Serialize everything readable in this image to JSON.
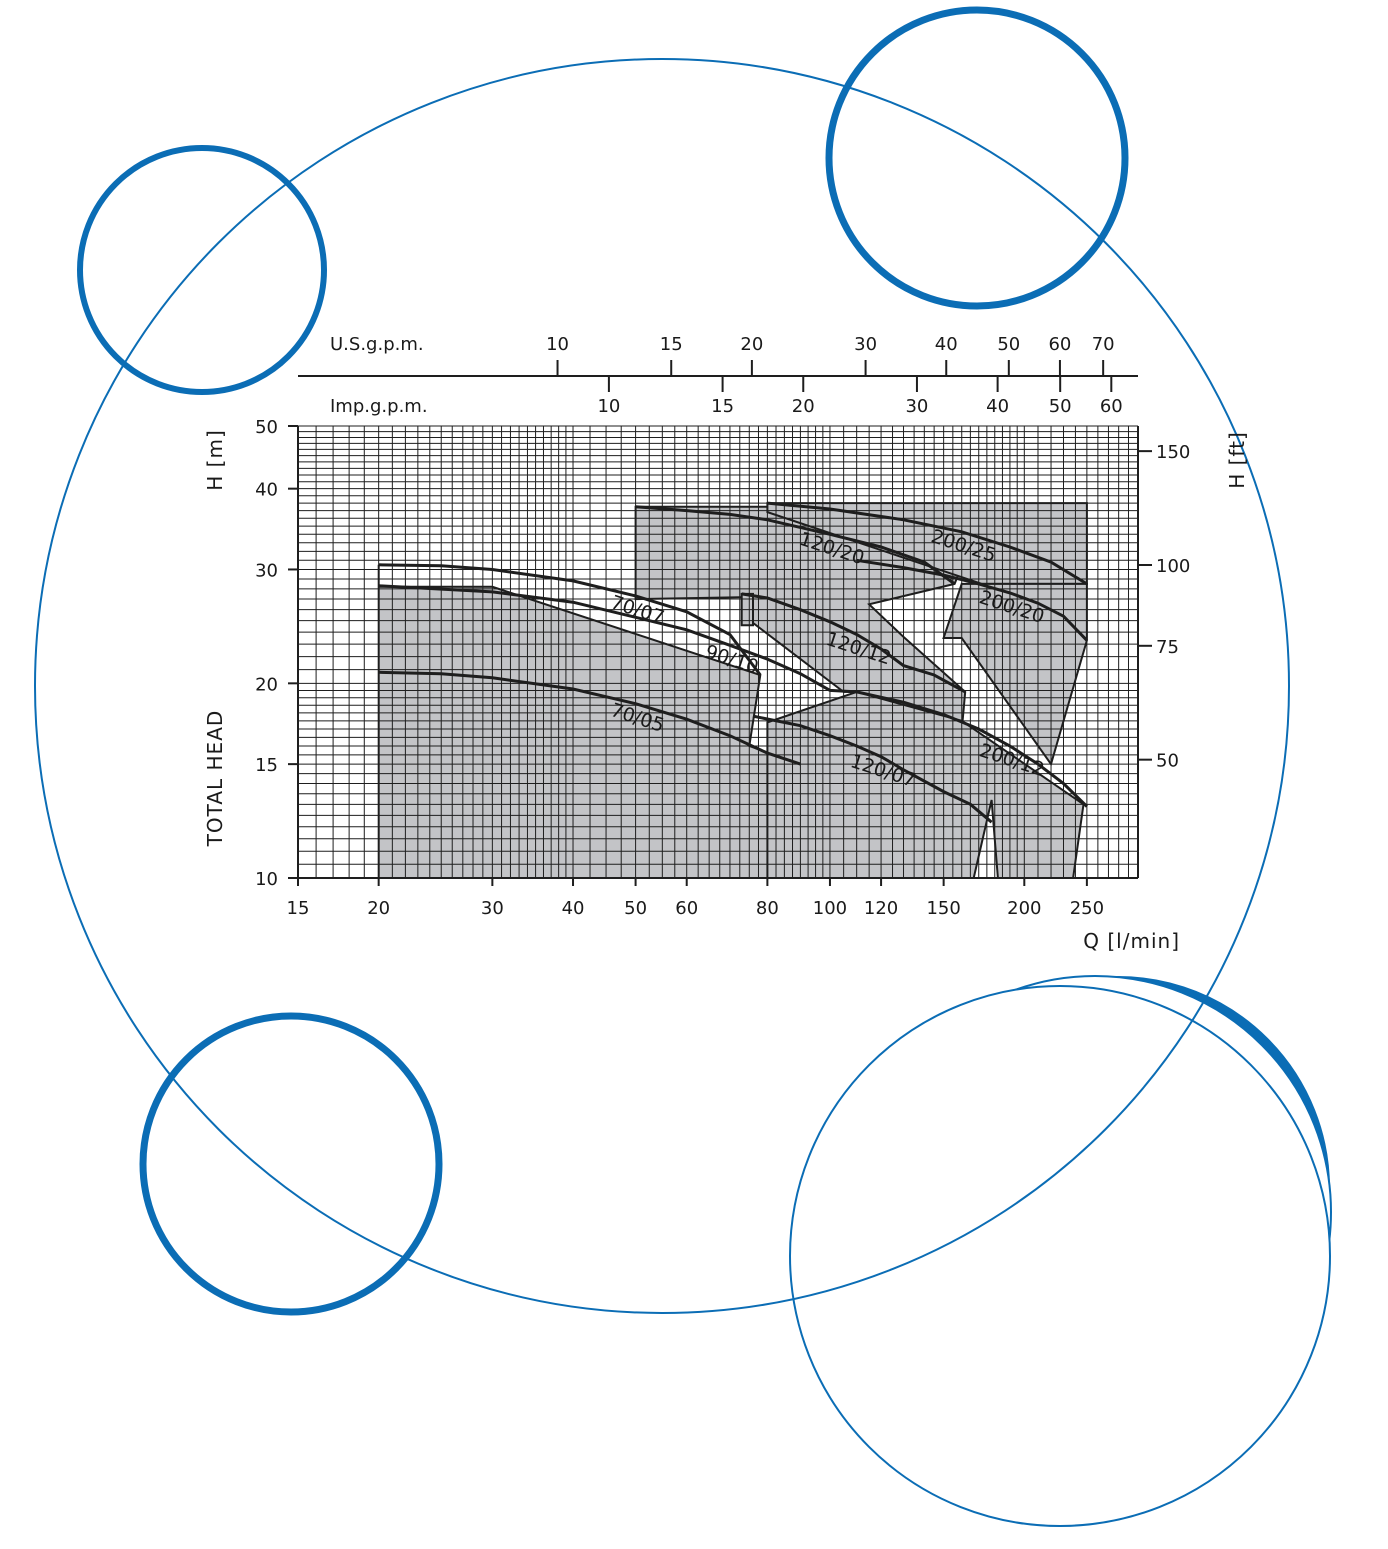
{
  "colors": {
    "accent_blue": "#0b6db5",
    "envelope_fill": "#c3c4c7",
    "curve": "#1e1e1e",
    "grid": "#1e1e1e"
  },
  "decoration": {
    "circles": "blue-ring-circles"
  },
  "chart_data": {
    "type": "line",
    "x_scale": "log",
    "y_scale": "log",
    "xlabel": "Q [l/min]",
    "ylabel": "TOTAL HEAD",
    "ylabel_unit_left": "H [m]",
    "ylabel_unit_right": "H [ft]",
    "xlim": [
      15,
      300
    ],
    "ylim": [
      10,
      50
    ],
    "x_ticks": [
      15,
      20,
      30,
      40,
      50,
      60,
      80,
      100,
      120,
      150,
      200,
      250
    ],
    "x_tick_labels": [
      "15",
      "20",
      "30",
      "40",
      "50",
      "60",
      "80",
      "100",
      "120",
      "150",
      "200",
      "250"
    ],
    "y_ticks": [
      10,
      15,
      20,
      30,
      40,
      50
    ],
    "y_tick_labels": [
      "10",
      "15",
      "20",
      "30",
      "40",
      "50"
    ],
    "y_right_ticks_ft": [
      50,
      75,
      100,
      150
    ],
    "y_right_tick_labels": [
      "50",
      "75",
      "100",
      "150"
    ],
    "top_axes": [
      {
        "label": "U.S.g.p.m.",
        "ticks": [
          10,
          15,
          20,
          30,
          40,
          50,
          60,
          70
        ],
        "tick_labels": [
          "10",
          "15",
          "20",
          "30",
          "40",
          "50",
          "60",
          "70"
        ],
        "lpm_per_unit": 3.785
      },
      {
        "label": "Imp.g.p.m.",
        "ticks": [
          10,
          15,
          20,
          30,
          40,
          50,
          60
        ],
        "tick_labels": [
          "10",
          "15",
          "20",
          "30",
          "40",
          "50",
          "60"
        ],
        "lpm_per_unit": 4.546
      }
    ],
    "grid": true,
    "legend": "none",
    "envelopes": [
      {
        "points": [
          [
            20,
            30.5
          ],
          [
            20,
            10
          ],
          [
            80,
            10
          ],
          [
            90,
            15
          ],
          [
            75,
            16
          ],
          [
            78,
            20.6
          ],
          [
            30,
            28.2
          ],
          [
            20,
            28.2
          ]
        ]
      },
      {
        "points": [
          [
            50,
            37.5
          ],
          [
            50,
            27
          ],
          [
            76,
            27.2
          ],
          [
            76,
            24.8
          ],
          [
            105,
            19.4
          ],
          [
            110,
            19.4
          ],
          [
            160,
            16.9
          ],
          [
            162,
            19.4
          ],
          [
            130,
            23.6
          ],
          [
            115,
            26.5
          ],
          [
            156,
            28.5
          ],
          [
            174,
            37.5
          ]
        ]
      },
      {
        "points": [
          [
            73,
            27.5
          ],
          [
            73,
            24.6
          ],
          [
            76,
            24.6
          ],
          [
            76,
            27.5
          ]
        ]
      },
      {
        "points": [
          [
            80,
            38
          ],
          [
            80,
            36.8
          ],
          [
            172,
            28.5
          ],
          [
            250,
            28.5
          ],
          [
            250,
            38
          ]
        ]
      },
      {
        "points": [
          [
            80,
            10
          ],
          [
            80,
            17.4
          ],
          [
            110,
            19.4
          ],
          [
            160,
            17.5
          ],
          [
            247,
            13
          ],
          [
            238,
            10
          ],
          [
            182,
            10
          ],
          [
            178,
            13.2
          ],
          [
            167,
            10
          ]
        ]
      },
      {
        "points": [
          [
            150,
            23.5
          ],
          [
            160,
            23.5
          ],
          [
            220,
            15
          ],
          [
            250,
            23.3
          ],
          [
            250,
            28.5
          ],
          [
            160,
            28.5
          ]
        ]
      }
    ],
    "series": [
      {
        "name": "70/05",
        "x": [
          20,
          25,
          30,
          40,
          50,
          60,
          70,
          80,
          90
        ],
        "y": [
          20.8,
          20.7,
          20.4,
          19.6,
          18.6,
          17.6,
          16.6,
          15.6,
          15.0
        ]
      },
      {
        "name": "70/07",
        "x": [
          20,
          25,
          30,
          40,
          50,
          60,
          70,
          78
        ],
        "y": [
          30.5,
          30.4,
          30.0,
          28.8,
          27.3,
          25.8,
          23.8,
          20.6
        ]
      },
      {
        "name": "90/10",
        "x": [
          20,
          30,
          40,
          50,
          60,
          70,
          80,
          90,
          100,
          110
        ],
        "y": [
          28.3,
          27.7,
          26.7,
          25.3,
          24.2,
          22.9,
          21.8,
          20.7,
          19.5,
          19.4
        ]
      },
      {
        "name": "120/07",
        "x": [
          76,
          90,
          100,
          110,
          120,
          130,
          150,
          165,
          178
        ],
        "y": [
          17.8,
          17.2,
          16.6,
          16.0,
          15.4,
          14.7,
          13.6,
          13.0,
          12.2
        ]
      },
      {
        "name": "120/12",
        "x": [
          73,
          80,
          90,
          100,
          110,
          120,
          130,
          145,
          162
        ],
        "y": [
          27.5,
          27.1,
          26.0,
          24.9,
          23.8,
          22.6,
          21.3,
          20.6,
          19.4
        ]
      },
      {
        "name": "120/20",
        "x": [
          50,
          60,
          70,
          80,
          100,
          120,
          140,
          156
        ],
        "y": [
          37.5,
          37.0,
          36.5,
          35.8,
          34.0,
          32.5,
          30.8,
          28.5
        ]
      },
      {
        "name": "200/12",
        "x": [
          110,
          130,
          150,
          170,
          190,
          210,
          230,
          250
        ],
        "y": [
          19.4,
          18.7,
          17.9,
          17.0,
          16.0,
          15.0,
          14.0,
          12.9
        ]
      },
      {
        "name": "200/20",
        "x": [
          110,
          130,
          150,
          170,
          190,
          210,
          230,
          250
        ],
        "y": [
          31.0,
          30.2,
          29.4,
          28.5,
          27.6,
          26.6,
          25.4,
          23.3
        ]
      },
      {
        "name": "200/25",
        "x": [
          80,
          100,
          130,
          160,
          190,
          220,
          250
        ],
        "y": [
          38.0,
          37.2,
          35.8,
          34.3,
          32.5,
          30.8,
          28.5
        ]
      }
    ],
    "label_positions": "inline"
  }
}
